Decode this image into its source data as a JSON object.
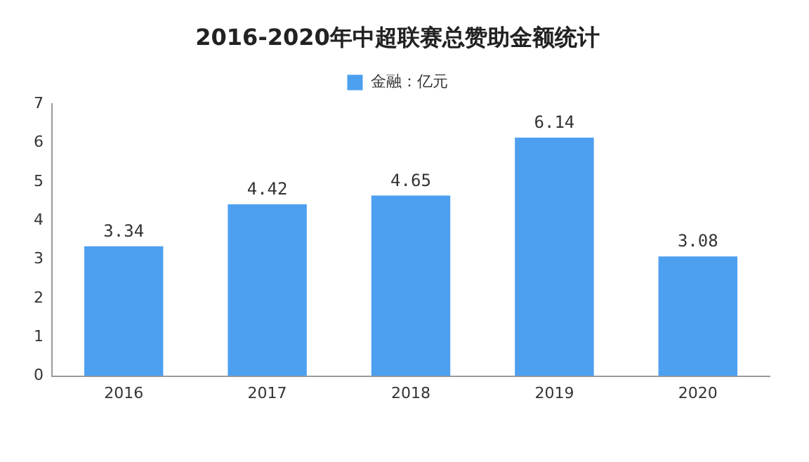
{
  "chart_data": {
    "type": "bar",
    "title": "2016-2020年中超联赛总赞助金额统计",
    "categories": [
      "2016",
      "2017",
      "2018",
      "2019",
      "2020"
    ],
    "series": [
      {
        "name": "金融：亿元",
        "color": "#4d9ff0",
        "values": [
          3.34,
          4.42,
          4.65,
          6.14,
          3.08
        ]
      }
    ],
    "ylim": [
      0,
      7
    ],
    "yticks": [
      0,
      1,
      2,
      3,
      4,
      5,
      6,
      7
    ],
    "grid": false,
    "legend": "top",
    "data_labels": true
  }
}
